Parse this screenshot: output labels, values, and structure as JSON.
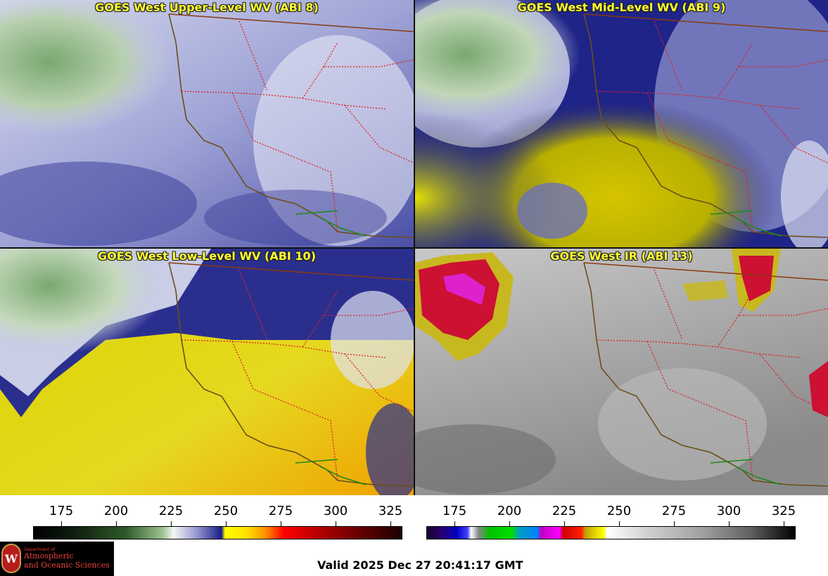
{
  "panels": [
    {
      "title": "GOES West Upper-Level WV (ABI 8)"
    },
    {
      "title": "GOES West Mid-Level WV (ABI 9)"
    },
    {
      "title": "GOES West Low-Level WV (ABI 10)"
    },
    {
      "title": "GOES West IR (ABI 13)"
    }
  ],
  "colorbars": [
    {
      "ticks": [
        "175",
        "200",
        "225",
        "250",
        "275",
        "300",
        "325"
      ]
    },
    {
      "ticks": [
        "175",
        "200",
        "225",
        "250",
        "275",
        "300",
        "325"
      ]
    }
  ],
  "valid_time": "Valid 2025 Dec 27 20:41:17 GMT",
  "logo": {
    "dept": "Department of",
    "line1": "Atmospheric",
    "line2": "and Oceanic Sciences"
  },
  "colors": {
    "title": "#ffff33",
    "border_state": "#dd2222",
    "coast": "#6b4f1a",
    "mexico_border": "#1a8a1a"
  }
}
